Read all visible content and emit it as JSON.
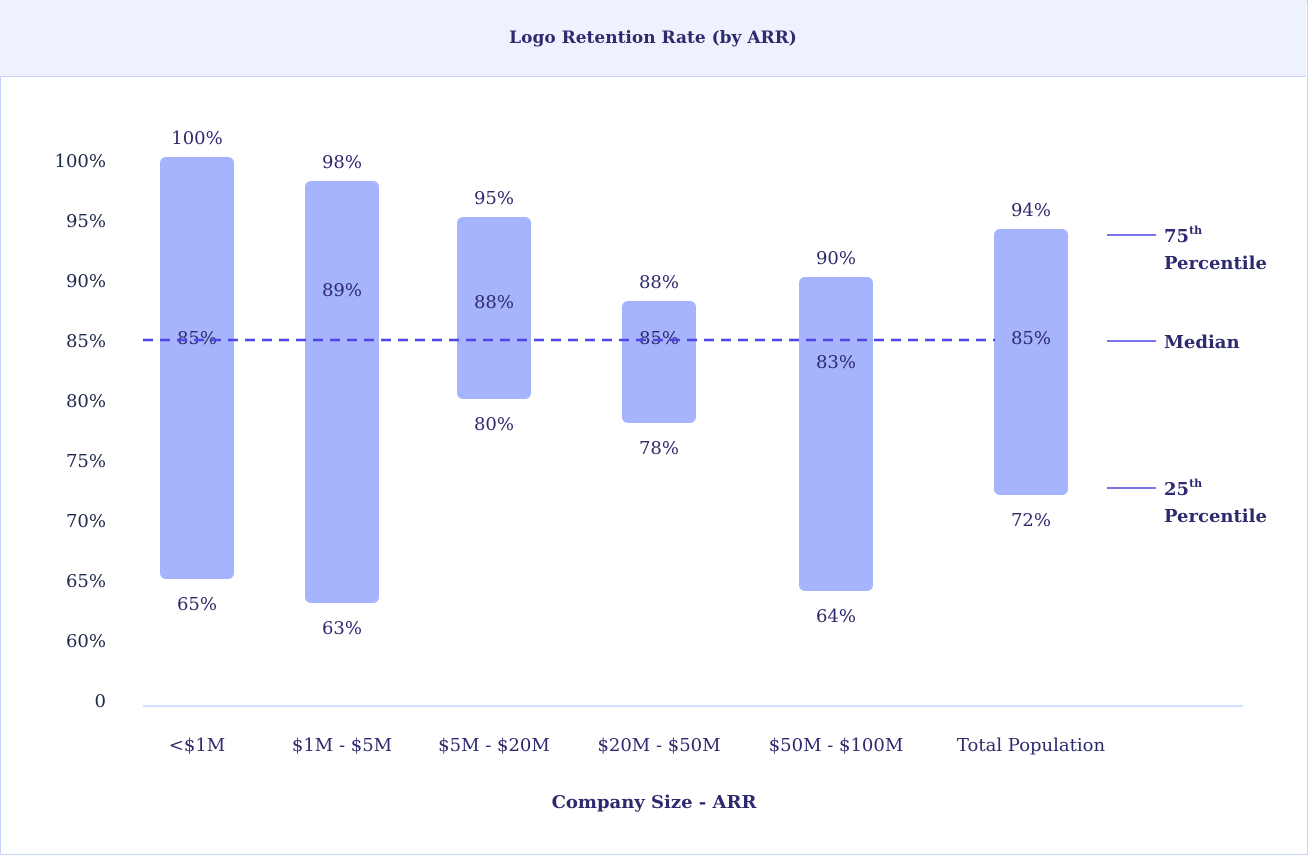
{
  "chart_data": {
    "type": "bar",
    "subtype": "floating-range",
    "title": "Logo Retention Rate (by ARR)",
    "xlabel": "Company Size - ARR",
    "ylabel": "",
    "y_ticks": [
      "0",
      "60%",
      "65%",
      "70%",
      "75%",
      "80%",
      "85%",
      "90%",
      "95%",
      "100%"
    ],
    "ylim": [
      60,
      100
    ],
    "y_axis_break": true,
    "categories": [
      "<$1M",
      "$1M - $5M",
      "$5M - $20M",
      "$20M - $50M",
      "$50M - $100M",
      "Total Population"
    ],
    "p75": [
      100,
      98,
      95,
      88,
      90,
      94
    ],
    "median": [
      85,
      89,
      88,
      85,
      83,
      85
    ],
    "p25": [
      65,
      63,
      80,
      78,
      64,
      72
    ],
    "reference_line": {
      "label": "Median",
      "value": 85,
      "style": "dashed"
    },
    "legend": [
      {
        "label": "75",
        "sup": "th",
        "label2": "Percentile"
      },
      {
        "label": "Median"
      },
      {
        "label": "25",
        "sup": "th",
        "label2": "Percentile"
      }
    ],
    "legend_placement": "right",
    "grid": false,
    "colors": {
      "bar": "#a5b4fc",
      "text": "#2e2a6e",
      "median_line": "#4f46e5",
      "header_bg": "#eef2ff"
    }
  }
}
